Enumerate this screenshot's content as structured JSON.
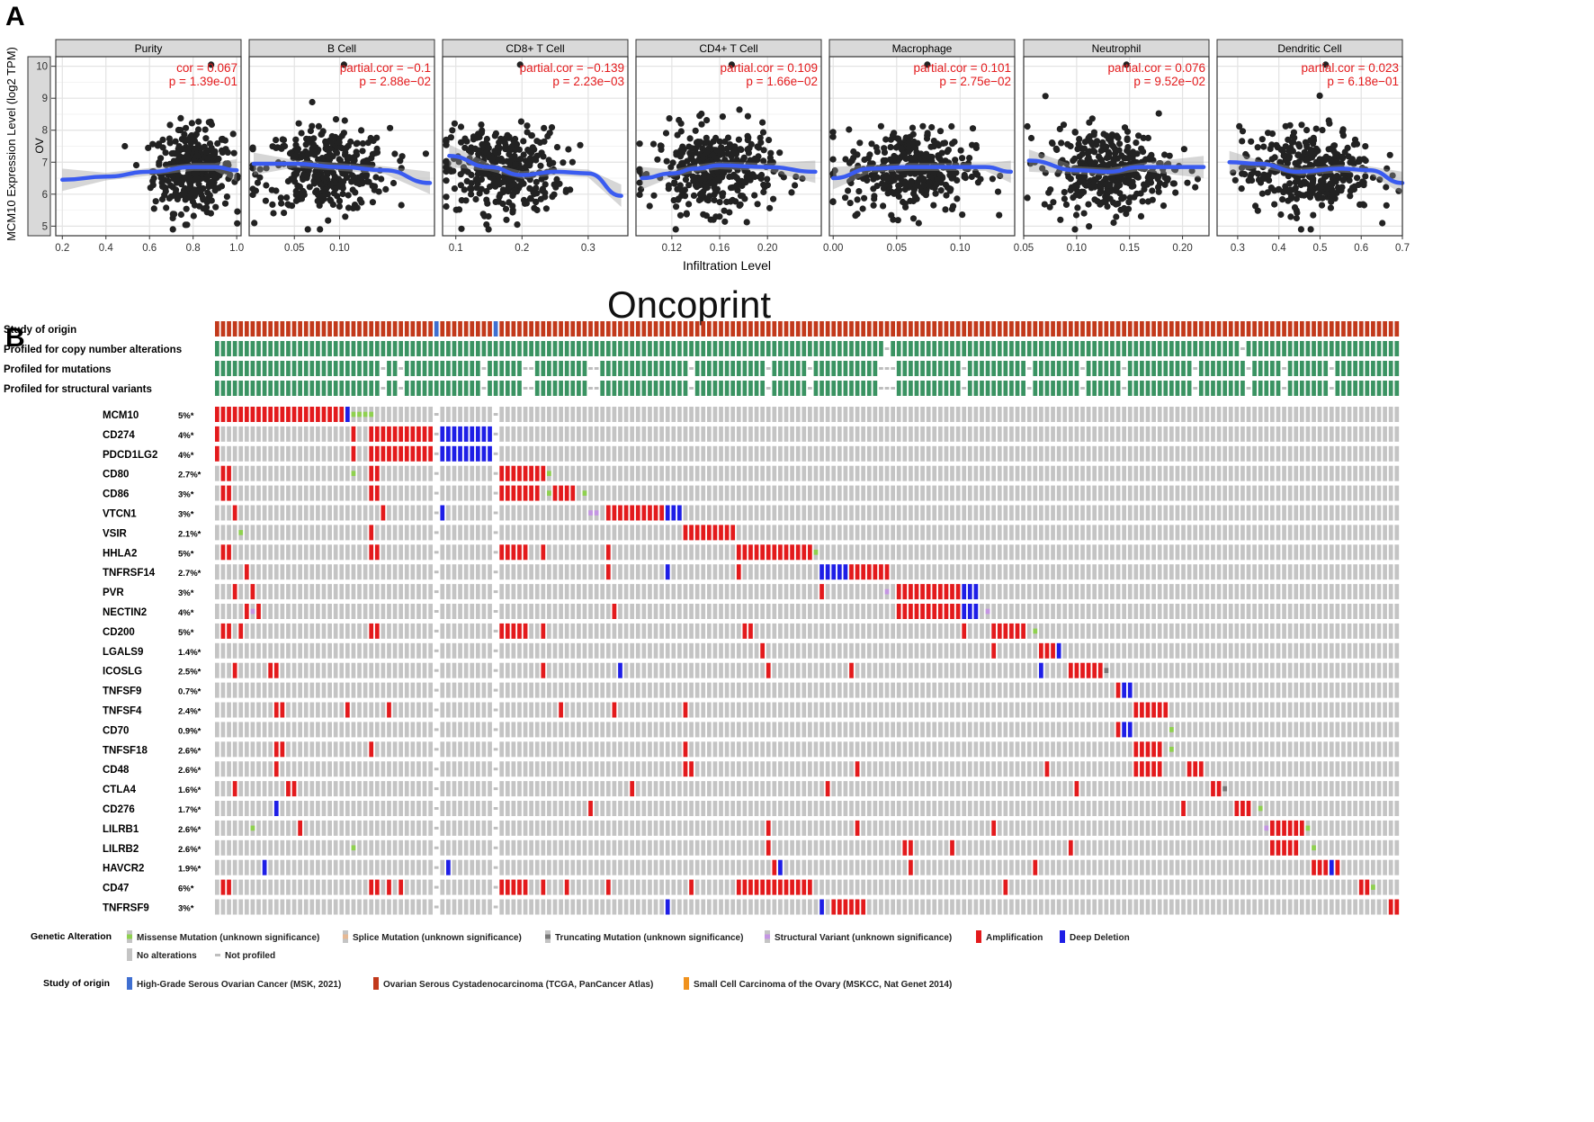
{
  "panel_a_label": "A",
  "panel_b_label": "B",
  "chart_data": [
    {
      "type": "scatter",
      "description_title": "TIMER scatter panels",
      "ylabel": "MCM10 Expression Level (log2 TPM)",
      "xlabel": "Infiltration Level",
      "strip_label": "OV",
      "ylim": [
        4.7,
        10.3
      ],
      "yticks": [
        5,
        6,
        7,
        8,
        9,
        10
      ],
      "facets": [
        {
          "name": "Purity",
          "stat_line": "cor = 0.067",
          "p_line": "p = 1.39e-01",
          "xlim": [
            0.17,
            1.02
          ],
          "xticks": [
            0.2,
            0.4,
            0.6,
            0.8,
            1.0
          ],
          "tick_labels": [
            "0.2",
            "0.4",
            "0.6",
            "0.8",
            "1.0"
          ],
          "cloud_center": 0.8,
          "cloud_sd": 0.09,
          "trend_x": [
            0.2,
            0.4,
            0.6,
            0.8,
            0.9,
            1.0
          ],
          "trend_y": [
            6.45,
            6.55,
            6.7,
            6.85,
            6.85,
            6.75
          ]
        },
        {
          "name": "B Cell",
          "stat_line": "partial.cor = −0.1",
          "p_line": "p = 2.88e−02",
          "xlim": [
            0.0,
            0.205
          ],
          "xticks": [
            0.05,
            0.1
          ],
          "tick_labels": [
            "0.05",
            "0.10"
          ],
          "cloud_center": 0.085,
          "cloud_sd": 0.035,
          "trend_x": [
            0.005,
            0.05,
            0.1,
            0.15,
            0.2
          ],
          "trend_y": [
            6.95,
            6.95,
            6.85,
            6.75,
            6.35
          ]
        },
        {
          "name": "CD8+ T Cell",
          "stat_line": "partial.cor = −0.139",
          "p_line": "p = 2.23e−03",
          "xlim": [
            0.08,
            0.36
          ],
          "xticks": [
            0.1,
            0.2,
            0.3
          ],
          "tick_labels": [
            "0.1",
            "0.2",
            "0.3"
          ],
          "cloud_center": 0.17,
          "cloud_sd": 0.045,
          "trend_x": [
            0.09,
            0.15,
            0.2,
            0.25,
            0.3,
            0.35
          ],
          "trend_y": [
            7.2,
            6.85,
            6.6,
            6.7,
            6.65,
            5.95
          ]
        },
        {
          "name": "CD4+ T Cell",
          "stat_line": "partial.cor = 0.109",
          "p_line": "p = 1.66e−02",
          "xlim": [
            0.09,
            0.245
          ],
          "xticks": [
            0.12,
            0.16,
            0.2
          ],
          "tick_labels": [
            "0.12",
            "0.16",
            "0.20"
          ],
          "cloud_center": 0.155,
          "cloud_sd": 0.025,
          "trend_x": [
            0.095,
            0.12,
            0.14,
            0.16,
            0.2,
            0.24
          ],
          "trend_y": [
            6.5,
            6.65,
            6.8,
            6.9,
            6.85,
            6.7
          ]
        },
        {
          "name": "Macrophage",
          "stat_line": "partial.cor = 0.101",
          "p_line": "p = 2.75e−02",
          "xlim": [
            -0.003,
            0.143
          ],
          "xticks": [
            0.0,
            0.05,
            0.1
          ],
          "tick_labels": [
            "0.00",
            "0.05",
            "0.10"
          ],
          "cloud_center": 0.06,
          "cloud_sd": 0.025,
          "trend_x": [
            0.0,
            0.03,
            0.06,
            0.09,
            0.12,
            0.14
          ],
          "trend_y": [
            6.5,
            6.8,
            6.85,
            6.85,
            6.85,
            6.7
          ]
        },
        {
          "name": "Neutrophil",
          "stat_line": "partial.cor = 0.076",
          "p_line": "p = 9.52e−02",
          "xlim": [
            0.05,
            0.225
          ],
          "xticks": [
            0.05,
            0.1,
            0.15,
            0.2
          ],
          "tick_labels": [
            "0.05",
            "0.10",
            "0.15",
            "0.20"
          ],
          "cloud_center": 0.13,
          "cloud_sd": 0.03,
          "trend_x": [
            0.055,
            0.1,
            0.13,
            0.16,
            0.22
          ],
          "trend_y": [
            7.05,
            6.75,
            6.7,
            6.85,
            6.85
          ]
        },
        {
          "name": "Dendritic Cell",
          "stat_line": "partial.cor = 0.023",
          "p_line": "p = 6.18e−01",
          "xlim": [
            0.25,
            0.7
          ],
          "xticks": [
            0.3,
            0.4,
            0.5,
            0.6,
            0.7
          ],
          "tick_labels": [
            "0.3",
            "0.4",
            "0.5",
            "0.6",
            "0.7"
          ],
          "cloud_center": 0.47,
          "cloud_sd": 0.08,
          "trend_x": [
            0.28,
            0.35,
            0.45,
            0.55,
            0.62,
            0.7
          ],
          "trend_y": [
            7.0,
            6.95,
            6.7,
            6.8,
            6.75,
            6.35
          ]
        }
      ]
    },
    {
      "type": "heatmap",
      "title": "Oncoprint",
      "n_samples": 200,
      "track_labels": [
        "Study of origin",
        "Profiled for copy number alterations",
        "Profiled for mutations",
        "Profiled for structural variants"
      ],
      "track_colors": {
        "study_main": "#c2391b",
        "study_msk": "#3f6fd1",
        "profiled": "#3a9362",
        "not_profiled": "#bebebe"
      },
      "study_msk_columns": [
        37,
        47
      ],
      "genes": [
        {
          "name": "MCM10",
          "pct": "5%*"
        },
        {
          "name": "CD274",
          "pct": "4%*"
        },
        {
          "name": "PDCD1LG2",
          "pct": "4%*"
        },
        {
          "name": "CD80",
          "pct": "2.7%*"
        },
        {
          "name": "CD86",
          "pct": "3%*"
        },
        {
          "name": "VTCN1",
          "pct": "3%*"
        },
        {
          "name": "VSIR",
          "pct": "2.1%*"
        },
        {
          "name": "HHLA2",
          "pct": "5%*"
        },
        {
          "name": "TNFRSF14",
          "pct": "2.7%*"
        },
        {
          "name": "PVR",
          "pct": "3%*"
        },
        {
          "name": "NECTIN2",
          "pct": "4%*"
        },
        {
          "name": "CD200",
          "pct": "5%*"
        },
        {
          "name": "LGALS9",
          "pct": "1.4%*"
        },
        {
          "name": "ICOSLG",
          "pct": "2.5%*"
        },
        {
          "name": "TNFSF9",
          "pct": "0.7%*"
        },
        {
          "name": "TNFSF4",
          "pct": "2.4%*"
        },
        {
          "name": "CD70",
          "pct": "0.9%*"
        },
        {
          "name": "TNFSF18",
          "pct": "2.6%*"
        },
        {
          "name": "CD48",
          "pct": "2.6%*"
        },
        {
          "name": "CTLA4",
          "pct": "1.6%*"
        },
        {
          "name": "CD276",
          "pct": "1.7%*"
        },
        {
          "name": "LILRB1",
          "pct": "2.6%*"
        },
        {
          "name": "LILRB2",
          "pct": "2.6%*"
        },
        {
          "name": "HAVCR2",
          "pct": "1.9%*"
        },
        {
          "name": "CD47",
          "pct": "6%*"
        },
        {
          "name": "TNFRSF9",
          "pct": "3%*"
        }
      ],
      "colors": {
        "no_alteration": "#c4c4c4",
        "amplification": "#e31a1c",
        "deep_deletion": "#1e1ee6",
        "missense": "#8fd14f",
        "truncating": "#777777",
        "structural": "#c495e3",
        "splice": "#e6b994",
        "not_profiled_dash": "#bebebe"
      }
    }
  ],
  "legend": {
    "genetic_alteration_title": "Genetic Alteration",
    "items": [
      {
        "label": "Missense Mutation (unknown significance)",
        "color": "#8fd14f"
      },
      {
        "label": "Splice Mutation (unknown significance)",
        "color": "#e6b994"
      },
      {
        "label": "Truncating Mutation (unknown significance)",
        "color": "#777777"
      },
      {
        "label": "Structural Variant (unknown significance)",
        "color": "#c495e3"
      },
      {
        "label": "Amplification",
        "color": "#e31a1c"
      },
      {
        "label": "Deep Deletion",
        "color": "#1e1ee6"
      },
      {
        "label": "No alterations",
        "color": "#c4c4c4"
      },
      {
        "label": "Not profiled",
        "color": "#bebebe"
      }
    ],
    "study_title": "Study of origin",
    "study_items": [
      {
        "label": "High-Grade Serous Ovarian Cancer (MSK, 2021)",
        "color": "#3f6fd1"
      },
      {
        "label": "Ovarian Serous Cystadenocarcinoma (TCGA, PanCancer Atlas)",
        "color": "#c2391b"
      },
      {
        "label": "Small Cell Carcinoma of the Ovary (MSKCC, Nat Genet 2014)",
        "color": "#f0921e"
      }
    ]
  }
}
